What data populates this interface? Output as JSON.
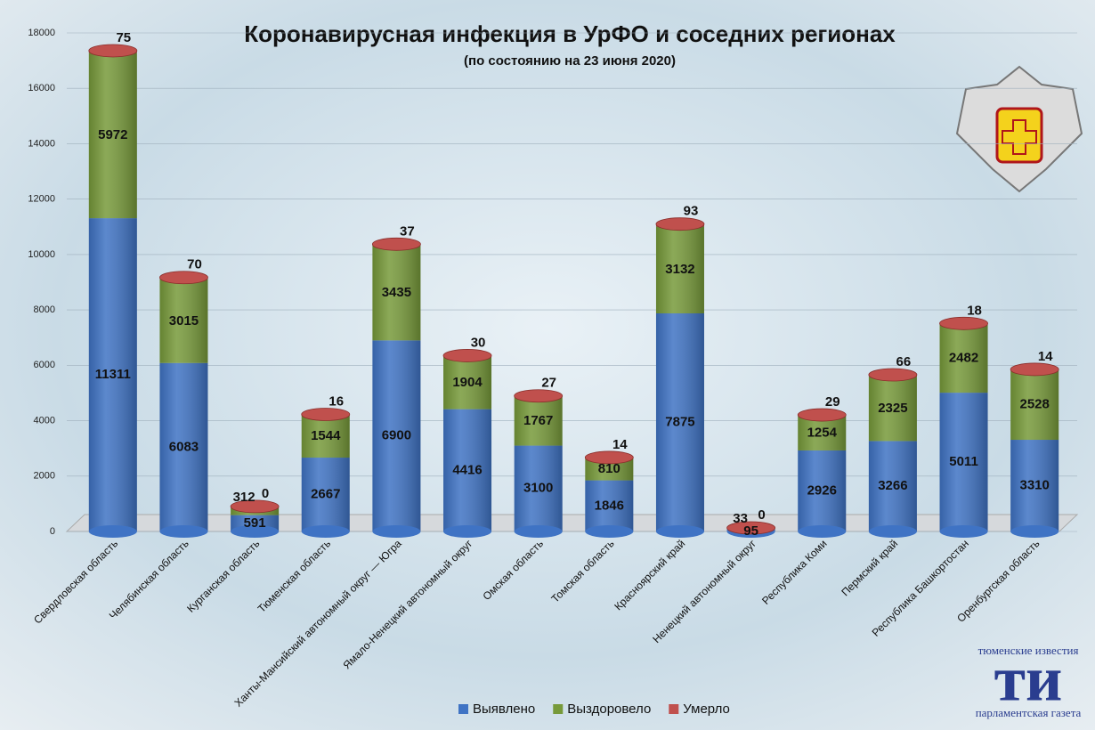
{
  "chart_data": {
    "type": "bar",
    "stacked": true,
    "title": "Коронавирусная инфекция в УрФО и соседних регионах",
    "subtitle": "(по состоянию на 23 июня 2020)",
    "categories": [
      "Свердловская область",
      "Челябинская область",
      "Курганская область",
      "Тюменская область",
      "Ханты-Мансийский автономный округ — Югра",
      "Ямало-Ненецкий автономный округ",
      "Омская область",
      "Томская область",
      "Красноярский край",
      "Ненецкий автономный округ",
      "Республика Коми",
      "Пермский край",
      "Республика Башкортостан",
      "Оренбургская область"
    ],
    "series": [
      {
        "name": "Выявлено",
        "color": "#3f73c4",
        "values": [
          11311,
          6083,
          591,
          2667,
          6900,
          4416,
          3100,
          1846,
          7875,
          95,
          2926,
          3266,
          5011,
          3310
        ]
      },
      {
        "name": "Выздоровело",
        "color": "#779a3a",
        "values": [
          5972,
          3015,
          312,
          1544,
          3435,
          1904,
          1767,
          810,
          3132,
          33,
          1254,
          2325,
          2482,
          2528
        ]
      },
      {
        "name": "Умерло",
        "color": "#c0504d",
        "values": [
          75,
          70,
          0,
          16,
          37,
          30,
          27,
          14,
          93,
          0,
          29,
          66,
          18,
          14
        ]
      }
    ],
    "ylim": [
      0,
      18000
    ],
    "yticks": [
      0,
      2000,
      4000,
      6000,
      8000,
      10000,
      12000,
      14000,
      16000,
      18000
    ],
    "grid": true,
    "legend": "bottom"
  },
  "logo": {
    "top": "тюменские известия",
    "mark": "ти",
    "bottom": "парламентская газета"
  }
}
